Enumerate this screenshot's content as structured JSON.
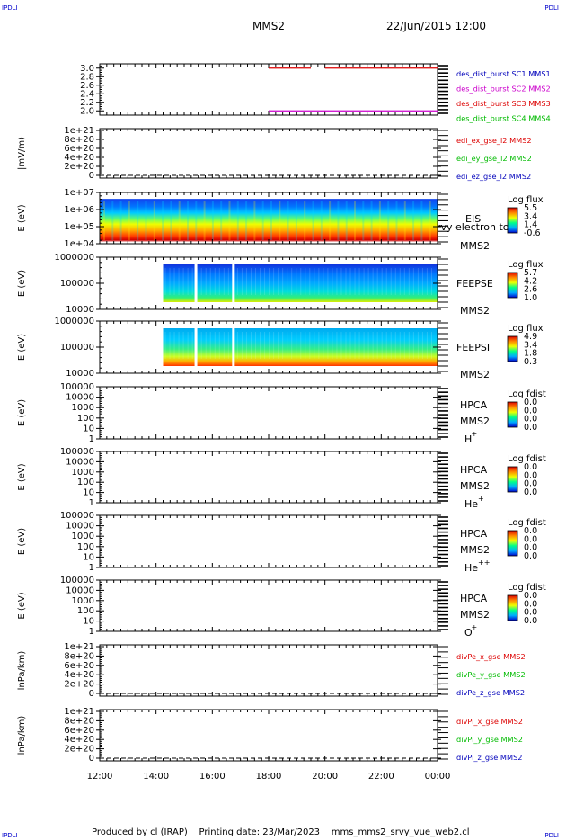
{
  "corner_label": "IPDLI",
  "header": {
    "spacecraft": "MMS2",
    "datetime": "22/Jun/2015 12:00"
  },
  "footer": {
    "produced_by": "Produced by cl (IRAP)",
    "printing_date": "Printing date: 23/Mar/2023",
    "script_name": "mms_mms2_srvy_vue_web2.cl"
  },
  "colors": {
    "red": "#dd0000",
    "magenta": "#cc00cc",
    "green": "#00bb00",
    "blue": "#0000bb",
    "dashed": "#000000"
  },
  "chart_data": [
    {
      "id": "burst",
      "type": "line",
      "xlim": [
        "12:00",
        "00:00"
      ],
      "yticks": [
        "2.0",
        "2.2",
        "2.4",
        "2.6",
        "2.8",
        "3.0"
      ],
      "ylim": [
        1.9,
        3.1
      ],
      "legend": [
        {
          "text": "des_dist_burst SC1 MMS1",
          "color": "#0000bb"
        },
        {
          "text": "des_dist_burst SC2 MMS2",
          "color": "#cc00cc"
        },
        {
          "text": "des_dist_burst SC3 MMS3",
          "color": "#dd0000"
        },
        {
          "text": "des_dist_burst SC4 MMS4",
          "color": "#00bb00"
        }
      ],
      "series": [
        {
          "color": "#dd0000",
          "y": 3.0,
          "segments": [
            [
              "18:00",
              "19:30"
            ],
            [
              "20:00",
              "24:00"
            ]
          ]
        },
        {
          "color": "#cc00cc",
          "y": 2.0,
          "segments": [
            [
              "18:00",
              "24:00"
            ]
          ]
        }
      ]
    },
    {
      "id": "edi",
      "type": "line",
      "ylabel": "|mV/m)",
      "yticks": [
        "0",
        "2e+20",
        "4e+20",
        "6e+20",
        "8e+20",
        "1e+21"
      ],
      "legend": [
        {
          "text": "edi_ex_gse_l2 MMS2",
          "color": "#dd0000"
        },
        {
          "text": "edi_ey_gse_l2 MMS2",
          "color": "#00bb00"
        },
        {
          "text": "edi_ez_gse_l2 MMS2",
          "color": "#0000bb"
        }
      ]
    },
    {
      "id": "eis",
      "type": "heatmap",
      "ylabel": "E (eV)",
      "yticks": [
        "1e+04",
        "1e+05",
        "1e+06",
        "1e+07"
      ],
      "instrument": "EIS",
      "overflow_text": "rvy electron to",
      "spacecraft": "MMS2",
      "colorbar_title": "Log flux",
      "colorbar_ticks": [
        "5.5",
        "3.4",
        "1.4",
        "-0.6"
      ],
      "data_start": "12:00",
      "data_end": "24:00"
    },
    {
      "id": "feepse",
      "type": "heatmap",
      "ylabel": "E (eV)",
      "yticks": [
        "1000000",
        "100000",
        "10000"
      ],
      "instrument": "FEEPSE",
      "spacecraft": "MMS2",
      "colorbar_title": "Log flux",
      "colorbar_ticks": [
        "5.7",
        "4.2",
        "2.6",
        "1.0"
      ],
      "data_start": "14:15",
      "data_end": "24:00",
      "gaps": [
        "15:25",
        "16:45"
      ]
    },
    {
      "id": "feepsi",
      "type": "heatmap",
      "ylabel": "E (eV)",
      "yticks": [
        "1000000",
        "100000",
        "10000"
      ],
      "instrument": "FEEPSI",
      "spacecraft": "MMS2",
      "colorbar_title": "Log flux",
      "colorbar_ticks": [
        "4.9",
        "3.4",
        "1.8",
        "0.3"
      ],
      "data_start": "14:15",
      "data_end": "24:00",
      "gaps": [
        "15:25",
        "16:45"
      ]
    },
    {
      "id": "hpca_h",
      "type": "heatmap",
      "ylabel": "E (eV)",
      "yticks": [
        "100000",
        "10000",
        "1000",
        "100",
        "10",
        "1"
      ],
      "instrument": "HPCA",
      "spacecraft": "MMS2",
      "species": "H",
      "charge": "+",
      "colorbar_title": "Log fdist",
      "colorbar_ticks": [
        "0.0",
        "0.0",
        "0.0",
        "0.0"
      ]
    },
    {
      "id": "hpca_he1",
      "type": "heatmap",
      "ylabel": "E (eV)",
      "yticks": [
        "100000",
        "10000",
        "1000",
        "100",
        "10",
        "1"
      ],
      "instrument": "HPCA",
      "spacecraft": "MMS2",
      "species": "He",
      "charge": "+",
      "colorbar_title": "Log fdist",
      "colorbar_ticks": [
        "0.0",
        "0.0",
        "0.0",
        "0.0"
      ]
    },
    {
      "id": "hpca_he2",
      "type": "heatmap",
      "ylabel": "E (eV)",
      "yticks": [
        "100000",
        "10000",
        "1000",
        "100",
        "10",
        "1"
      ],
      "instrument": "HPCA",
      "spacecraft": "MMS2",
      "species": "He",
      "charge": "++",
      "colorbar_title": "Log fdist",
      "colorbar_ticks": [
        "0.0",
        "0.0",
        "0.0",
        "0.0"
      ]
    },
    {
      "id": "hpca_o",
      "type": "heatmap",
      "ylabel": "E (eV)",
      "yticks": [
        "100000",
        "10000",
        "1000",
        "100",
        "10",
        "1"
      ],
      "instrument": "HPCA",
      "spacecraft": "MMS2",
      "species": "O",
      "charge": "+",
      "colorbar_title": "Log fdist",
      "colorbar_ticks": [
        "0.0",
        "0.0",
        "0.0",
        "0.0"
      ]
    },
    {
      "id": "divpe",
      "type": "line",
      "ylabel": "lnPa/km)",
      "yticks": [
        "0",
        "2e+20",
        "4e+20",
        "6e+20",
        "8e+20",
        "1e+21"
      ],
      "legend": [
        {
          "text": "divPe_x_gse MMS2",
          "color": "#dd0000"
        },
        {
          "text": "divPe_y_gse MMS2",
          "color": "#00bb00"
        },
        {
          "text": "divPe_z_gse MMS2",
          "color": "#0000bb"
        }
      ]
    },
    {
      "id": "divpi",
      "type": "line",
      "ylabel": "lnPa/km)",
      "yticks": [
        "0",
        "2e+20",
        "4e+20",
        "6e+20",
        "8e+20",
        "1e+21"
      ],
      "legend": [
        {
          "text": "divPi_x_gse MMS2",
          "color": "#dd0000"
        },
        {
          "text": "divPi_y_gse MMS2",
          "color": "#00bb00"
        },
        {
          "text": "divPi_z_gse MMS2",
          "color": "#0000bb"
        }
      ]
    }
  ],
  "xaxis_ticks": [
    "12:00",
    "14:00",
    "16:00",
    "18:00",
    "20:00",
    "22:00",
    "00:00"
  ]
}
